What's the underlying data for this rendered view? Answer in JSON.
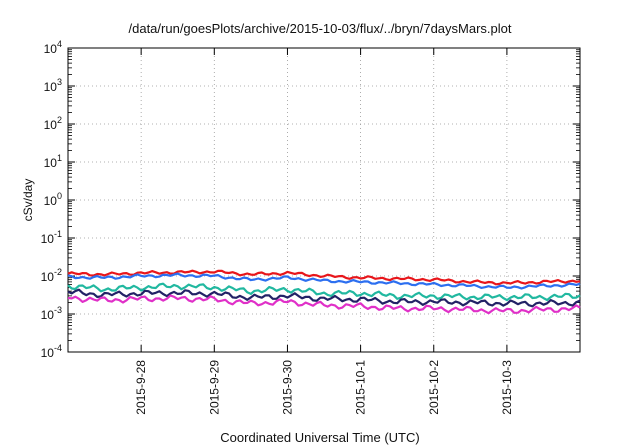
{
  "chart_data": {
    "type": "line",
    "title": "/data/run/goesPlots/archive/2015-10-03/flux/../bryn/7daysMars.plot",
    "xlabel": "Coordinated Universal Time (UTC)",
    "ylabel": "cSv/day",
    "yscale": "log",
    "ylim": [
      0.0001,
      10000
    ],
    "xlim": [
      "2015-09-27 00:00",
      "2015-10-03 23:59"
    ],
    "x_ticks": [
      "2015-9-28",
      "2015-9-29",
      "2015-9-30",
      "2015-10-1",
      "2015-10-2",
      "2015-10-3"
    ],
    "y_ticks": [
      {
        "base": "10",
        "exp": "-4"
      },
      {
        "base": "10",
        "exp": "-3"
      },
      {
        "base": "10",
        "exp": "-2"
      },
      {
        "base": "10",
        "exp": "-1"
      },
      {
        "base": "10",
        "exp": "0"
      },
      {
        "base": "10",
        "exp": "1"
      },
      {
        "base": "10",
        "exp": "2"
      },
      {
        "base": "10",
        "exp": "3"
      },
      {
        "base": "10",
        "exp": "4"
      }
    ],
    "grid": true,
    "x": [
      "2015-09-27 00:00",
      "2015-09-27 12:00",
      "2015-09-28 00:00",
      "2015-09-28 12:00",
      "2015-09-29 00:00",
      "2015-09-29 12:00",
      "2015-09-30 00:00",
      "2015-09-30 12:00",
      "2015-10-01 00:00",
      "2015-10-01 12:00",
      "2015-10-02 00:00",
      "2015-10-02 12:00",
      "2015-10-03 00:00",
      "2015-10-03 12:00",
      "2015-10-03 23:59"
    ],
    "series": [
      {
        "color": "#e8161b",
        "values": [
          0.0115,
          0.011,
          0.012,
          0.0125,
          0.013,
          0.011,
          0.012,
          0.01,
          0.009,
          0.0085,
          0.008,
          0.007,
          0.0065,
          0.007,
          0.0075
        ]
      },
      {
        "color": "#2c6ff0",
        "values": [
          0.0095,
          0.009,
          0.01,
          0.0105,
          0.01,
          0.008,
          0.009,
          0.0075,
          0.007,
          0.0065,
          0.006,
          0.0055,
          0.005,
          0.0055,
          0.006
        ]
      },
      {
        "color": "#21b8a0",
        "values": [
          0.0055,
          0.0045,
          0.005,
          0.0055,
          0.005,
          0.004,
          0.0045,
          0.0035,
          0.0035,
          0.003,
          0.003,
          0.0028,
          0.0028,
          0.0028,
          0.003
        ]
      },
      {
        "color": "#222266",
        "values": [
          0.0038,
          0.0032,
          0.0035,
          0.0036,
          0.0034,
          0.0027,
          0.003,
          0.0025,
          0.0024,
          0.0021,
          0.0021,
          0.002,
          0.0019,
          0.0019,
          0.002
        ]
      },
      {
        "color": "#e030c8",
        "values": [
          0.0027,
          0.0023,
          0.0025,
          0.0026,
          0.0024,
          0.0019,
          0.0021,
          0.0017,
          0.0016,
          0.0014,
          0.0014,
          0.0013,
          0.0012,
          0.0013,
          0.0014
        ]
      }
    ]
  }
}
